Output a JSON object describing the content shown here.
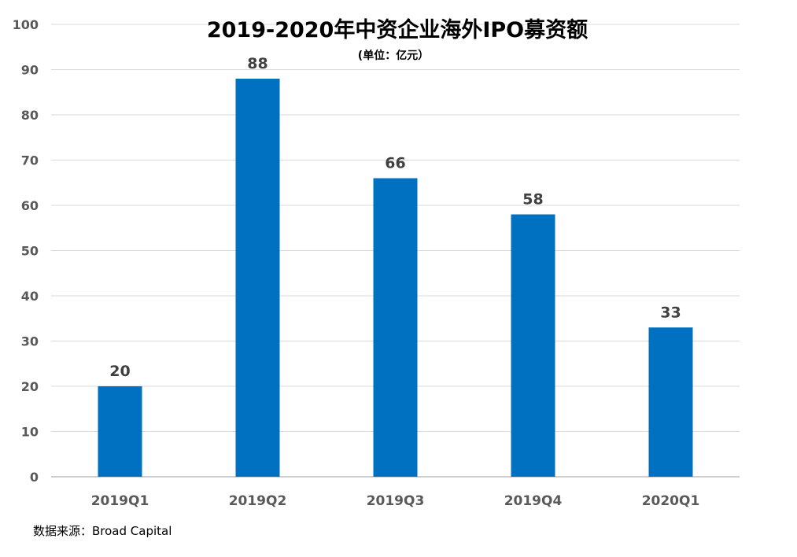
{
  "chart_data": {
    "type": "bar",
    "title": "2019-2020年中资企业海外IPO募资额",
    "subtitle": "(单位：亿元）",
    "categories": [
      "2019Q1",
      "2019Q2",
      "2019Q3",
      "2019Q4",
      "2020Q1"
    ],
    "values": [
      20,
      88,
      66,
      58,
      33
    ],
    "data_labels": [
      "20",
      "88",
      "66",
      "58",
      "33"
    ],
    "ylim": [
      0,
      100
    ],
    "yticks": [
      0,
      10,
      20,
      30,
      40,
      50,
      60,
      70,
      80,
      90,
      100
    ],
    "ytick_labels": [
      "0",
      "10",
      "20",
      "30",
      "40",
      "50",
      "60",
      "70",
      "80",
      "90",
      "100"
    ],
    "xlabel": "",
    "ylabel": "",
    "grid": true,
    "bar_color": "#0070C0",
    "grid_color": "#D9D9D9"
  },
  "source": "数据来源：Broad Capital"
}
